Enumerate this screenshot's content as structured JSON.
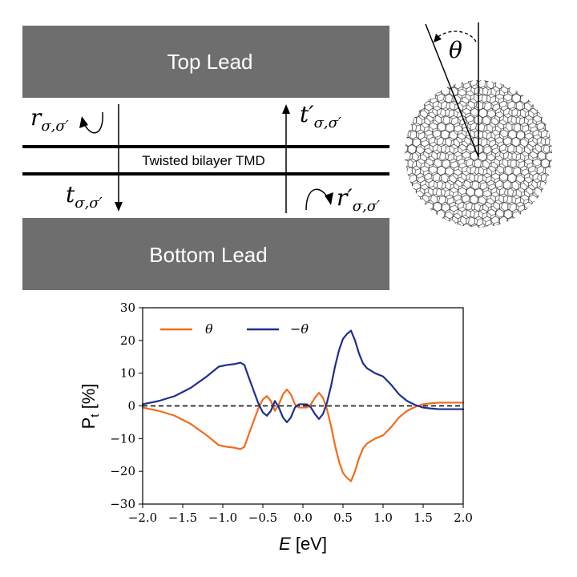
{
  "diagram": {
    "top_lead": "Top Lead",
    "bottom_lead": "Bottom Lead",
    "bilayer": "Twisted bilayer TMD",
    "r_label": {
      "main": "r",
      "sub": "σ,σ′"
    },
    "t_prime_label": {
      "main": "t′",
      "sub": "σ,σ′"
    },
    "t_label": {
      "main": "t",
      "sub": "σ,σ′"
    },
    "r_prime_label": {
      "main": "r′",
      "sub": "σ,σ′"
    },
    "theta": "θ",
    "lead_color": "#6e6e6e"
  },
  "chart_data": {
    "type": "line",
    "xlabel_main": "E",
    "xlabel_unit": " [eV]",
    "ylabel": "P",
    "ylabel_sub": "t",
    "ylabel_unit": " [%]",
    "xlim": [
      -2.0,
      2.0
    ],
    "ylim": [
      -30,
      30
    ],
    "xticks": [
      "−2.0",
      "−1.5",
      "−1.0",
      "−0.5",
      "0.0",
      "0.5",
      "1.0",
      "1.5",
      "2.0"
    ],
    "xtick_values": [
      -2.0,
      -1.5,
      -1.0,
      -0.5,
      0.0,
      0.5,
      1.0,
      1.5,
      2.0
    ],
    "yticks": [
      "−30",
      "−20",
      "−10",
      "0",
      "10",
      "20",
      "30"
    ],
    "ytick_values": [
      -30,
      -20,
      -10,
      0,
      10,
      20,
      30
    ],
    "reference_line": {
      "y": 0,
      "style": "dashed",
      "color": "#000000"
    },
    "series": [
      {
        "name": "θ",
        "color": "#f26b1d",
        "x": [
          -2.0,
          -1.8,
          -1.6,
          -1.4,
          -1.2,
          -1.05,
          -0.95,
          -0.85,
          -0.78,
          -0.73,
          -0.68,
          -0.62,
          -0.56,
          -0.5,
          -0.45,
          -0.4,
          -0.35,
          -0.3,
          -0.25,
          -0.2,
          -0.15,
          -0.1,
          -0.05,
          0.0,
          0.05,
          0.1,
          0.15,
          0.2,
          0.25,
          0.3,
          0.35,
          0.4,
          0.45,
          0.5,
          0.55,
          0.6,
          0.65,
          0.7,
          0.75,
          0.8,
          0.9,
          1.0,
          1.1,
          1.2,
          1.3,
          1.4,
          1.5,
          1.6,
          1.7,
          1.8,
          2.0
        ],
        "y": [
          -0.5,
          -1.5,
          -3.0,
          -5.5,
          -9.0,
          -12.0,
          -12.5,
          -12.8,
          -13.2,
          -12.5,
          -9.0,
          -5.0,
          -1.0,
          2.0,
          3.0,
          1.5,
          -1.5,
          0.5,
          3.5,
          5.0,
          3.5,
          0.5,
          -0.5,
          -0.5,
          -0.5,
          0.5,
          2.5,
          4.0,
          2.5,
          -1.0,
          -6.0,
          -12.0,
          -17.0,
          -20.5,
          -22.0,
          -23.0,
          -20.0,
          -16.0,
          -13.0,
          -11.5,
          -10.0,
          -9.0,
          -6.5,
          -3.5,
          -1.5,
          -0.3,
          0.5,
          0.8,
          1.0,
          1.0,
          1.0
        ]
      },
      {
        "name": "−θ",
        "color": "#1f2e8f",
        "x": [
          -2.0,
          -1.8,
          -1.6,
          -1.4,
          -1.2,
          -1.05,
          -0.95,
          -0.85,
          -0.78,
          -0.73,
          -0.68,
          -0.62,
          -0.56,
          -0.5,
          -0.45,
          -0.4,
          -0.35,
          -0.3,
          -0.25,
          -0.2,
          -0.15,
          -0.1,
          -0.05,
          0.0,
          0.05,
          0.1,
          0.15,
          0.2,
          0.25,
          0.3,
          0.35,
          0.4,
          0.45,
          0.5,
          0.55,
          0.6,
          0.65,
          0.7,
          0.75,
          0.8,
          0.9,
          1.0,
          1.1,
          1.2,
          1.3,
          1.4,
          1.5,
          1.6,
          1.7,
          1.8,
          2.0
        ],
        "y": [
          0.5,
          1.5,
          3.0,
          5.5,
          9.0,
          12.0,
          12.5,
          12.8,
          13.2,
          12.5,
          9.0,
          5.0,
          1.0,
          -2.0,
          -3.0,
          -1.5,
          1.5,
          -0.5,
          -3.5,
          -5.0,
          -3.5,
          -0.5,
          0.5,
          0.5,
          0.5,
          -0.5,
          -2.5,
          -4.0,
          -2.5,
          1.0,
          6.0,
          12.0,
          17.0,
          20.5,
          22.0,
          23.0,
          20.0,
          16.0,
          13.0,
          11.5,
          10.0,
          9.0,
          6.5,
          3.5,
          1.5,
          0.3,
          -0.5,
          -0.8,
          -1.0,
          -1.0,
          -1.0
        ]
      }
    ],
    "legend": "top-left"
  }
}
